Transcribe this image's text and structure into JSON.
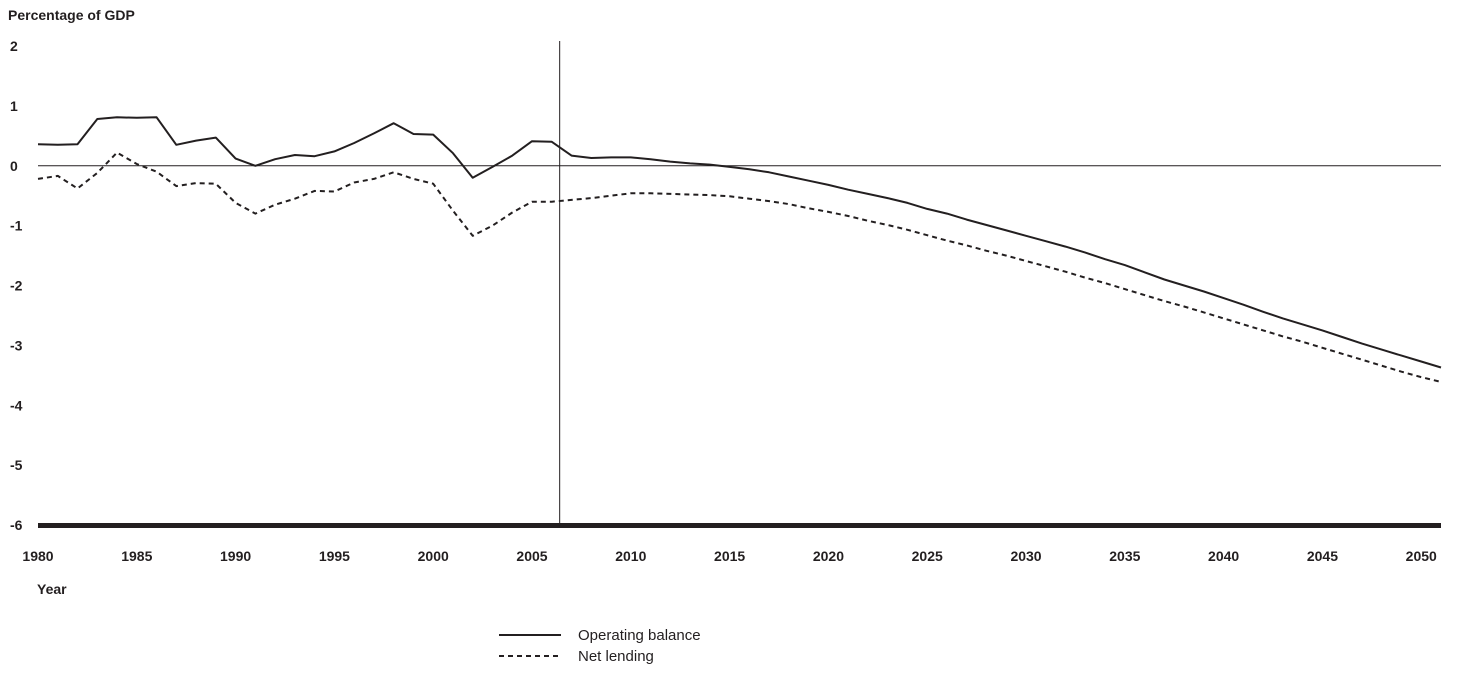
{
  "chart_data": {
    "type": "line",
    "title": "",
    "ylabel": "Percentage of GDP",
    "xlabel": "Year",
    "ylim": [
      -6,
      2
    ],
    "xlim": [
      1980,
      2051
    ],
    "y_ticks": [
      "2",
      "1",
      "0",
      "-1",
      "-2",
      "-3",
      "-4",
      "-5",
      "-6"
    ],
    "x_ticks": [
      "1980",
      "1985",
      "1990",
      "1995",
      "2000",
      "2005",
      "2010",
      "2015",
      "2020",
      "2025",
      "2030",
      "2035",
      "2040",
      "2045",
      "2050"
    ],
    "grid": false,
    "reference_lines": {
      "horizontal_y": 0,
      "vertical_x": 2006.4
    },
    "legend_position": "bottom-center",
    "series": [
      {
        "name": "Operating balance",
        "style": "solid",
        "color": "#231f20",
        "points": [
          [
            1980,
            0.36
          ],
          [
            1981,
            0.35
          ],
          [
            1982,
            0.36
          ],
          [
            1983,
            0.78
          ],
          [
            1984,
            0.81
          ],
          [
            1985,
            0.8
          ],
          [
            1986,
            0.81
          ],
          [
            1987,
            0.35
          ],
          [
            1988,
            0.42
          ],
          [
            1989,
            0.47
          ],
          [
            1990,
            0.12
          ],
          [
            1991,
            0.0
          ],
          [
            1992,
            0.11
          ],
          [
            1993,
            0.18
          ],
          [
            1994,
            0.16
          ],
          [
            1995,
            0.24
          ],
          [
            1996,
            0.38
          ],
          [
            1997,
            0.54
          ],
          [
            1998,
            0.71
          ],
          [
            1999,
            0.53
          ],
          [
            2000,
            0.52
          ],
          [
            2001,
            0.21
          ],
          [
            2002,
            -0.2
          ],
          [
            2003,
            -0.02
          ],
          [
            2004,
            0.17
          ],
          [
            2005,
            0.41
          ],
          [
            2006,
            0.4
          ],
          [
            2007,
            0.17
          ],
          [
            2008,
            0.13
          ],
          [
            2009,
            0.14
          ],
          [
            2010,
            0.14
          ],
          [
            2011,
            0.11
          ],
          [
            2012,
            0.07
          ],
          [
            2013,
            0.04
          ],
          [
            2014,
            0.02
          ],
          [
            2015,
            -0.02
          ],
          [
            2016,
            -0.06
          ],
          [
            2017,
            -0.11
          ],
          [
            2018,
            -0.18
          ],
          [
            2019,
            -0.25
          ],
          [
            2020,
            -0.32
          ],
          [
            2021,
            -0.4
          ],
          [
            2022,
            -0.47
          ],
          [
            2023,
            -0.54
          ],
          [
            2024,
            -0.62
          ],
          [
            2025,
            -0.72
          ],
          [
            2026,
            -0.8
          ],
          [
            2027,
            -0.9
          ],
          [
            2028,
            -0.99
          ],
          [
            2029,
            -1.08
          ],
          [
            2030,
            -1.17
          ],
          [
            2031,
            -1.26
          ],
          [
            2032,
            -1.35
          ],
          [
            2033,
            -1.45
          ],
          [
            2034,
            -1.56
          ],
          [
            2035,
            -1.66
          ],
          [
            2036,
            -1.78
          ],
          [
            2037,
            -1.9
          ],
          [
            2038,
            -2.0
          ],
          [
            2039,
            -2.1
          ],
          [
            2040,
            -2.21
          ],
          [
            2041,
            -2.32
          ],
          [
            2042,
            -2.44
          ],
          [
            2043,
            -2.55
          ],
          [
            2044,
            -2.65
          ],
          [
            2045,
            -2.75
          ],
          [
            2046,
            -2.86
          ],
          [
            2047,
            -2.97
          ],
          [
            2048,
            -3.07
          ],
          [
            2049,
            -3.17
          ],
          [
            2050,
            -3.27
          ],
          [
            2051,
            -3.37
          ]
        ]
      },
      {
        "name": "Net lending",
        "style": "dashed",
        "color": "#231f20",
        "points": [
          [
            1980,
            -0.22
          ],
          [
            1981,
            -0.17
          ],
          [
            1982,
            -0.38
          ],
          [
            1983,
            -0.12
          ],
          [
            1984,
            0.22
          ],
          [
            1985,
            0.03
          ],
          [
            1986,
            -0.1
          ],
          [
            1987,
            -0.34
          ],
          [
            1988,
            -0.29
          ],
          [
            1989,
            -0.3
          ],
          [
            1990,
            -0.62
          ],
          [
            1991,
            -0.8
          ],
          [
            1992,
            -0.65
          ],
          [
            1993,
            -0.55
          ],
          [
            1994,
            -0.42
          ],
          [
            1995,
            -0.43
          ],
          [
            1996,
            -0.28
          ],
          [
            1997,
            -0.22
          ],
          [
            1998,
            -0.11
          ],
          [
            1999,
            -0.22
          ],
          [
            2000,
            -0.3
          ],
          [
            2001,
            -0.75
          ],
          [
            2002,
            -1.17
          ],
          [
            2003,
            -1.0
          ],
          [
            2004,
            -0.78
          ],
          [
            2005,
            -0.6
          ],
          [
            2006,
            -0.6
          ],
          [
            2007,
            -0.57
          ],
          [
            2008,
            -0.54
          ],
          [
            2009,
            -0.5
          ],
          [
            2010,
            -0.46
          ],
          [
            2011,
            -0.46
          ],
          [
            2012,
            -0.47
          ],
          [
            2013,
            -0.48
          ],
          [
            2014,
            -0.49
          ],
          [
            2015,
            -0.51
          ],
          [
            2016,
            -0.55
          ],
          [
            2017,
            -0.59
          ],
          [
            2018,
            -0.64
          ],
          [
            2019,
            -0.71
          ],
          [
            2020,
            -0.77
          ],
          [
            2021,
            -0.84
          ],
          [
            2022,
            -0.92
          ],
          [
            2023,
            -0.99
          ],
          [
            2024,
            -1.07
          ],
          [
            2025,
            -1.16
          ],
          [
            2026,
            -1.25
          ],
          [
            2027,
            -1.33
          ],
          [
            2028,
            -1.42
          ],
          [
            2029,
            -1.5
          ],
          [
            2030,
            -1.59
          ],
          [
            2031,
            -1.68
          ],
          [
            2032,
            -1.77
          ],
          [
            2033,
            -1.87
          ],
          [
            2034,
            -1.96
          ],
          [
            2035,
            -2.06
          ],
          [
            2036,
            -2.16
          ],
          [
            2037,
            -2.26
          ],
          [
            2038,
            -2.35
          ],
          [
            2039,
            -2.45
          ],
          [
            2040,
            -2.55
          ],
          [
            2041,
            -2.65
          ],
          [
            2042,
            -2.75
          ],
          [
            2043,
            -2.85
          ],
          [
            2044,
            -2.94
          ],
          [
            2045,
            -3.04
          ],
          [
            2046,
            -3.14
          ],
          [
            2047,
            -3.24
          ],
          [
            2048,
            -3.34
          ],
          [
            2049,
            -3.44
          ],
          [
            2050,
            -3.53
          ],
          [
            2051,
            -3.61
          ]
        ]
      }
    ]
  }
}
